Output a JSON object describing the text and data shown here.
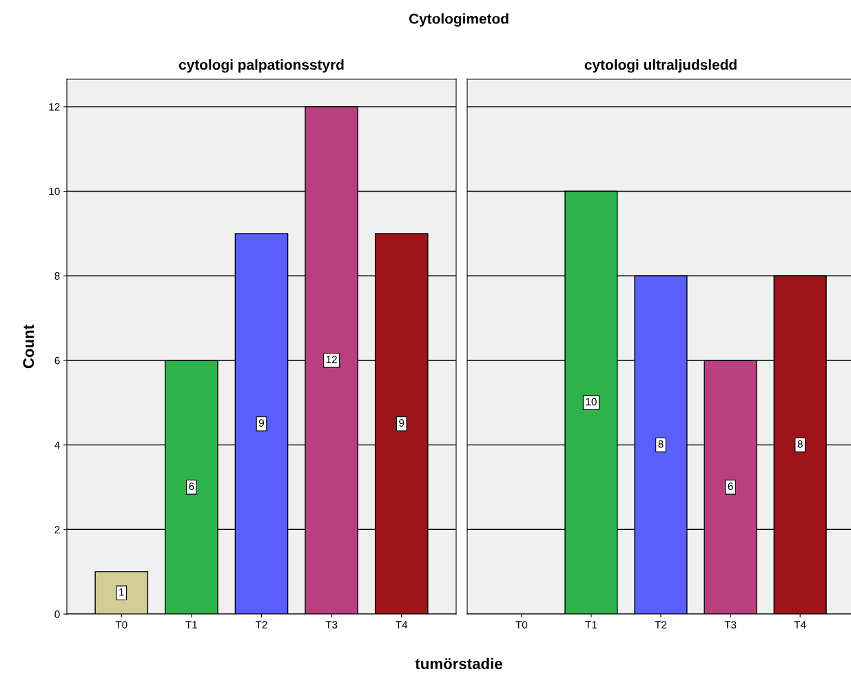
{
  "chart_data": [
    {
      "type": "bar",
      "title": "cytologi palpationsstyrd",
      "xlabel": "tumörstadie",
      "ylabel": "Count",
      "annotations": [
        "Cytologimetod"
      ],
      "categories": [
        "T0",
        "T1",
        "T2",
        "T3",
        "T4"
      ],
      "values": [
        1,
        6,
        9,
        12,
        9
      ],
      "colors": [
        "#d3ce97",
        "#2db34a",
        "#5a5ffe",
        "#b93f7e",
        "#9d1518"
      ],
      "ylim": [
        0,
        12.65
      ],
      "yticks": [
        0,
        2,
        4,
        6,
        8,
        10,
        12
      ],
      "grid": "y",
      "data_labels": true,
      "legend": false
    },
    {
      "type": "bar",
      "title": "cytologi ultraljudsledd",
      "categories": [
        "T0",
        "T1",
        "T2",
        "T3",
        "T4"
      ],
      "values": [
        null,
        10,
        8,
        6,
        8
      ],
      "colors": [
        "#d3ce97",
        "#2db34a",
        "#5a5ffe",
        "#b93f7e",
        "#9d1518"
      ],
      "ylim": [
        0,
        12.65
      ],
      "yticks": [
        0,
        2,
        4,
        6,
        8,
        10,
        12
      ],
      "grid": "y",
      "data_labels": true,
      "legend": false,
      "tick_labels": "x"
    }
  ]
}
